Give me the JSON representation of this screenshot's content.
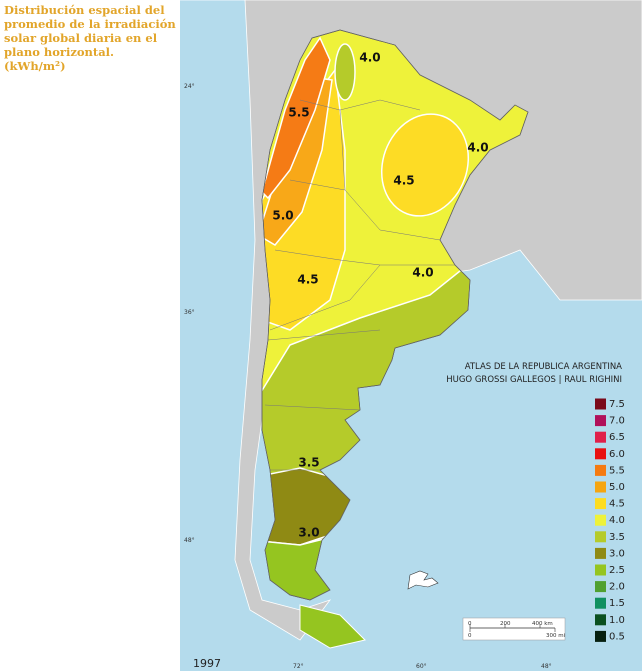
{
  "title_lines": [
    "Distribución espacial del",
    "promedio de la irradiación",
    "solar global diaria en el",
    "plano horizontal.",
    "(kWh/m²)"
  ],
  "zone_labels": [
    "4.0",
    "5.5",
    "4.0",
    "4.5",
    "5.0",
    "4.5",
    "4.0",
    "3.5",
    "3.0"
  ],
  "latitudes": [
    "24°",
    "36°",
    "48°"
  ],
  "longitudes": [
    "72°",
    "60°",
    "48°"
  ],
  "credit": [
    "ATLAS DE LA REPUBLICA ARGENTINA",
    "HUGO GROSSI GALLEGOS | RAUL RIGHINI"
  ],
  "legend": [
    "7.5",
    "7.0",
    "6.5",
    "6.0",
    "5.5",
    "5.0",
    "4.5",
    "4.0",
    "3.5",
    "3.0",
    "2.5",
    "2.0",
    "1.5",
    "1.0",
    "0.5"
  ],
  "legend_colors": [
    "#7a0a1a",
    "#b0105a",
    "#e0204a",
    "#e81010",
    "#f57a10",
    "#f5a510",
    "#fddc20",
    "#eef23a",
    "#b5cb2a",
    "#8f8a14",
    "#95c520",
    "#50a030",
    "#109060",
    "#0a5020",
    "#062010"
  ],
  "year": "1997",
  "scale": [
    "0",
    "200",
    "400 km",
    "0",
    "300 mi"
  ]
}
